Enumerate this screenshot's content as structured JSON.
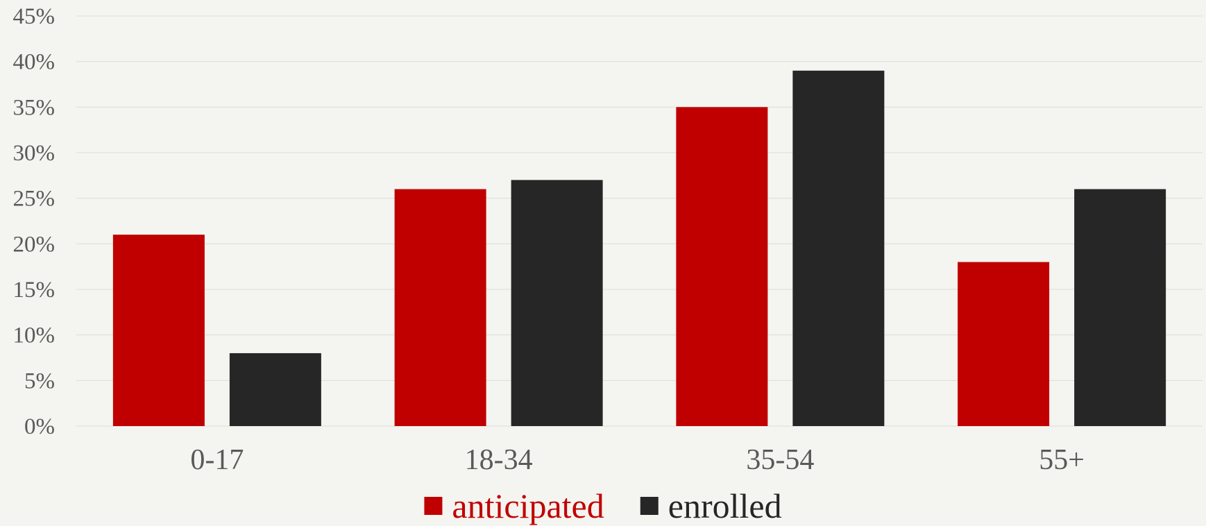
{
  "chart_data": {
    "type": "bar",
    "title": "",
    "xlabel": "",
    "ylabel": "",
    "categories": [
      "0-17",
      "18-34",
      "35-54",
      "55+"
    ],
    "series": [
      {
        "name": "anticipated",
        "values": [
          21,
          26,
          35,
          18
        ],
        "color": "#c00000"
      },
      {
        "name": "enrolled",
        "values": [
          8,
          27,
          39,
          26
        ],
        "color": "#262626"
      }
    ],
    "ylim": [
      0,
      45
    ],
    "yticks": [
      "0%",
      "5%",
      "10%",
      "15%",
      "20%",
      "25%",
      "30%",
      "35%",
      "40%",
      "45%"
    ],
    "grid": true,
    "legend_position": "bottom"
  },
  "colors": {
    "background": "#f4f4f0",
    "gridline": "#dcdcd8",
    "tick_label": "#595959"
  }
}
